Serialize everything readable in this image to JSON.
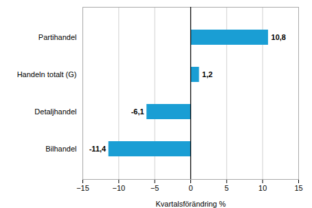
{
  "chart_data": {
    "type": "bar",
    "orientation": "horizontal",
    "categories": [
      "Bilhandel",
      "Detaljhandel",
      "Handeln totalt (G)",
      "Partihandel"
    ],
    "values": [
      -11.4,
      -6.1,
      1.2,
      10.8
    ],
    "value_labels": [
      "-11,4",
      "-6,1",
      "1,2",
      "10,8"
    ],
    "data_labels": true,
    "color": "#1a9ed4",
    "xlabel": "Kvartalsförändring %",
    "xlim": [
      -15,
      15
    ],
    "xticks": [
      -15,
      -10,
      -5,
      0,
      5,
      10,
      15
    ],
    "grid": true
  }
}
